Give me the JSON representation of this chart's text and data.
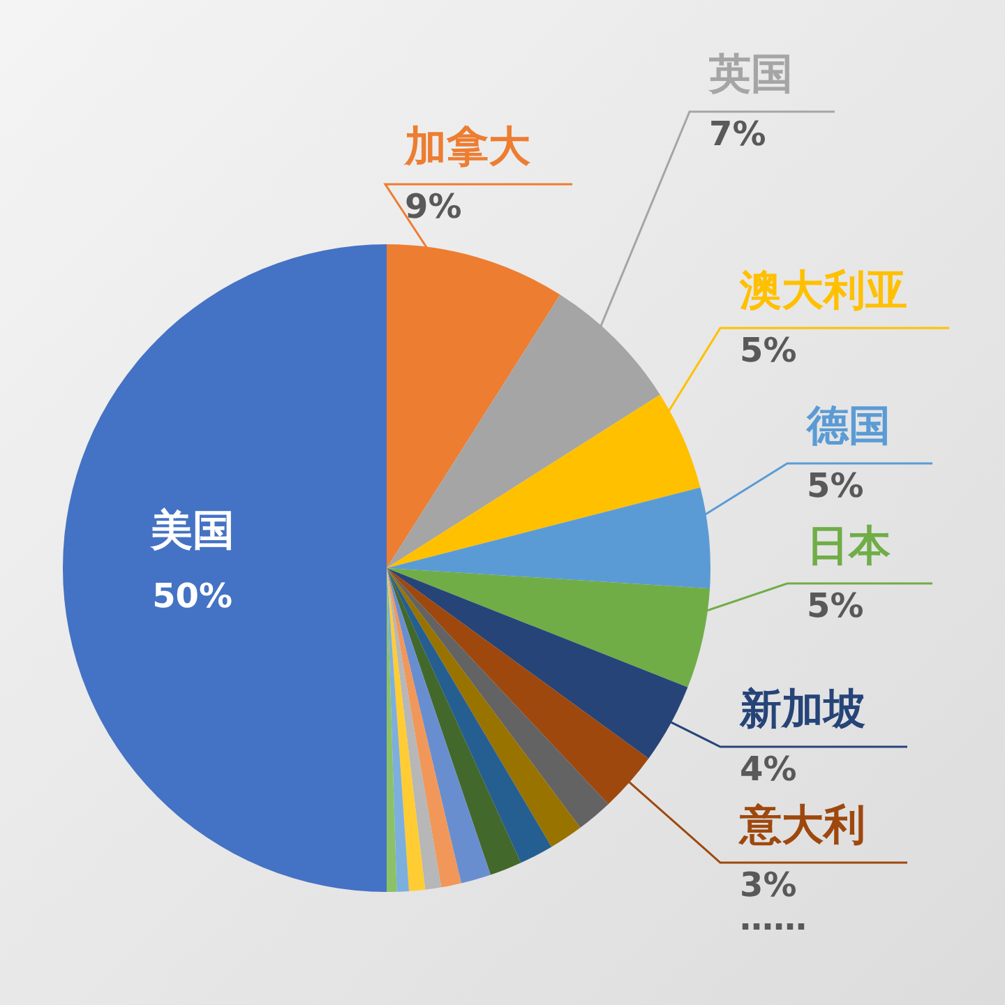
{
  "chart_data": {
    "type": "pie",
    "categories": [
      "加拿大",
      "英国",
      "澳大利亚",
      "德国",
      "日本",
      "新加坡",
      "意大利",
      null,
      null,
      null,
      null,
      null,
      null,
      null,
      null,
      null,
      null,
      "美国"
    ],
    "values": [
      9,
      7,
      5,
      5,
      5,
      4,
      3,
      1.8,
      1.7,
      1.7,
      1.6,
      1.5,
      1,
      0.8,
      0.8,
      0.6,
      0.5,
      50
    ],
    "colors": [
      "#ed7d31",
      "#a5a5a5",
      "#ffc000",
      "#5b9bd5",
      "#70ad47",
      "#264478",
      "#9e480e",
      "#636363",
      "#997300",
      "#255e91",
      "#43682b",
      "#698ed0",
      "#f1975a",
      "#b7b7b7",
      "#ffcd33",
      "#7cafdd",
      "#8cc168",
      "#4472c4"
    ],
    "value_labels": [
      "9%",
      "7%",
      "5%",
      "5%",
      "5%",
      "4%",
      "3%",
      null,
      null,
      null,
      null,
      null,
      null,
      null,
      null,
      null,
      null,
      "50%"
    ],
    "annotations": [
      "……"
    ],
    "legend": false
  }
}
